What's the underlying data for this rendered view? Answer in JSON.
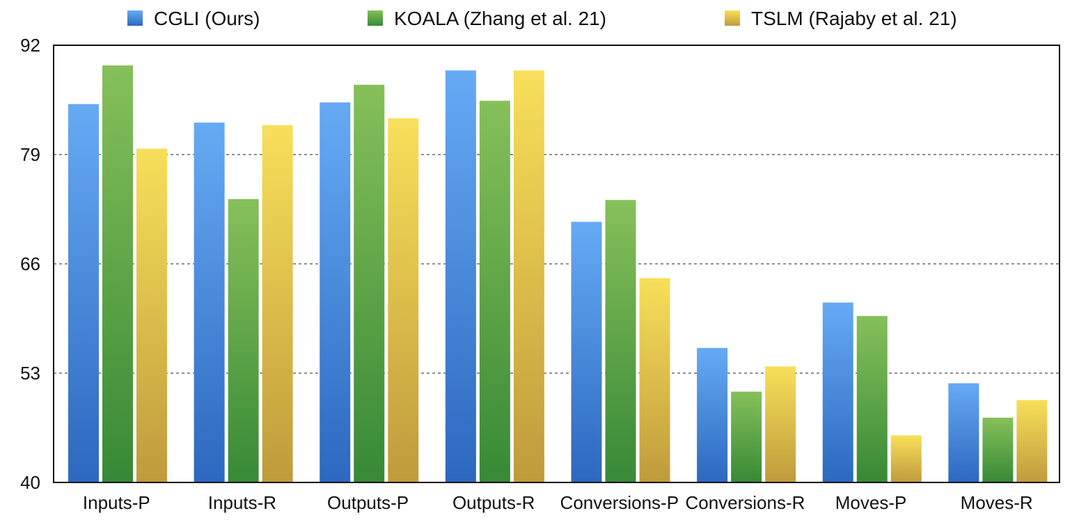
{
  "chart_data": {
    "type": "bar",
    "title": "",
    "xlabel": "",
    "ylabel": "",
    "ylim": [
      40,
      92
    ],
    "yticks": [
      40,
      53,
      66,
      79,
      92
    ],
    "grid": true,
    "legend_position": "top",
    "categories": [
      "Inputs-P",
      "Inputs-R",
      "Outputs-P",
      "Outputs-R",
      "Conversions-P",
      "Conversions-R",
      "Moves-P",
      "Moves-R"
    ],
    "series": [
      {
        "name": "CGLI (Ours)",
        "color_light": "#66aaf4",
        "color_dark": "#2c68bf",
        "values": [
          85.0,
          82.8,
          85.2,
          89.0,
          71.0,
          56.0,
          61.4,
          51.8
        ]
      },
      {
        "name": "KOALA (Zhang et al. 21)",
        "color_light": "#86c05a",
        "color_dark": "#378936",
        "values": [
          89.6,
          73.7,
          87.3,
          85.4,
          73.6,
          50.8,
          59.8,
          47.7
        ]
      },
      {
        "name": "TSLM (Rajaby et al. 21)",
        "color_light": "#f8df5a",
        "color_dark": "#bf9b3c",
        "values": [
          79.7,
          82.5,
          83.3,
          89.0,
          64.3,
          53.8,
          45.6,
          49.8
        ]
      }
    ]
  }
}
